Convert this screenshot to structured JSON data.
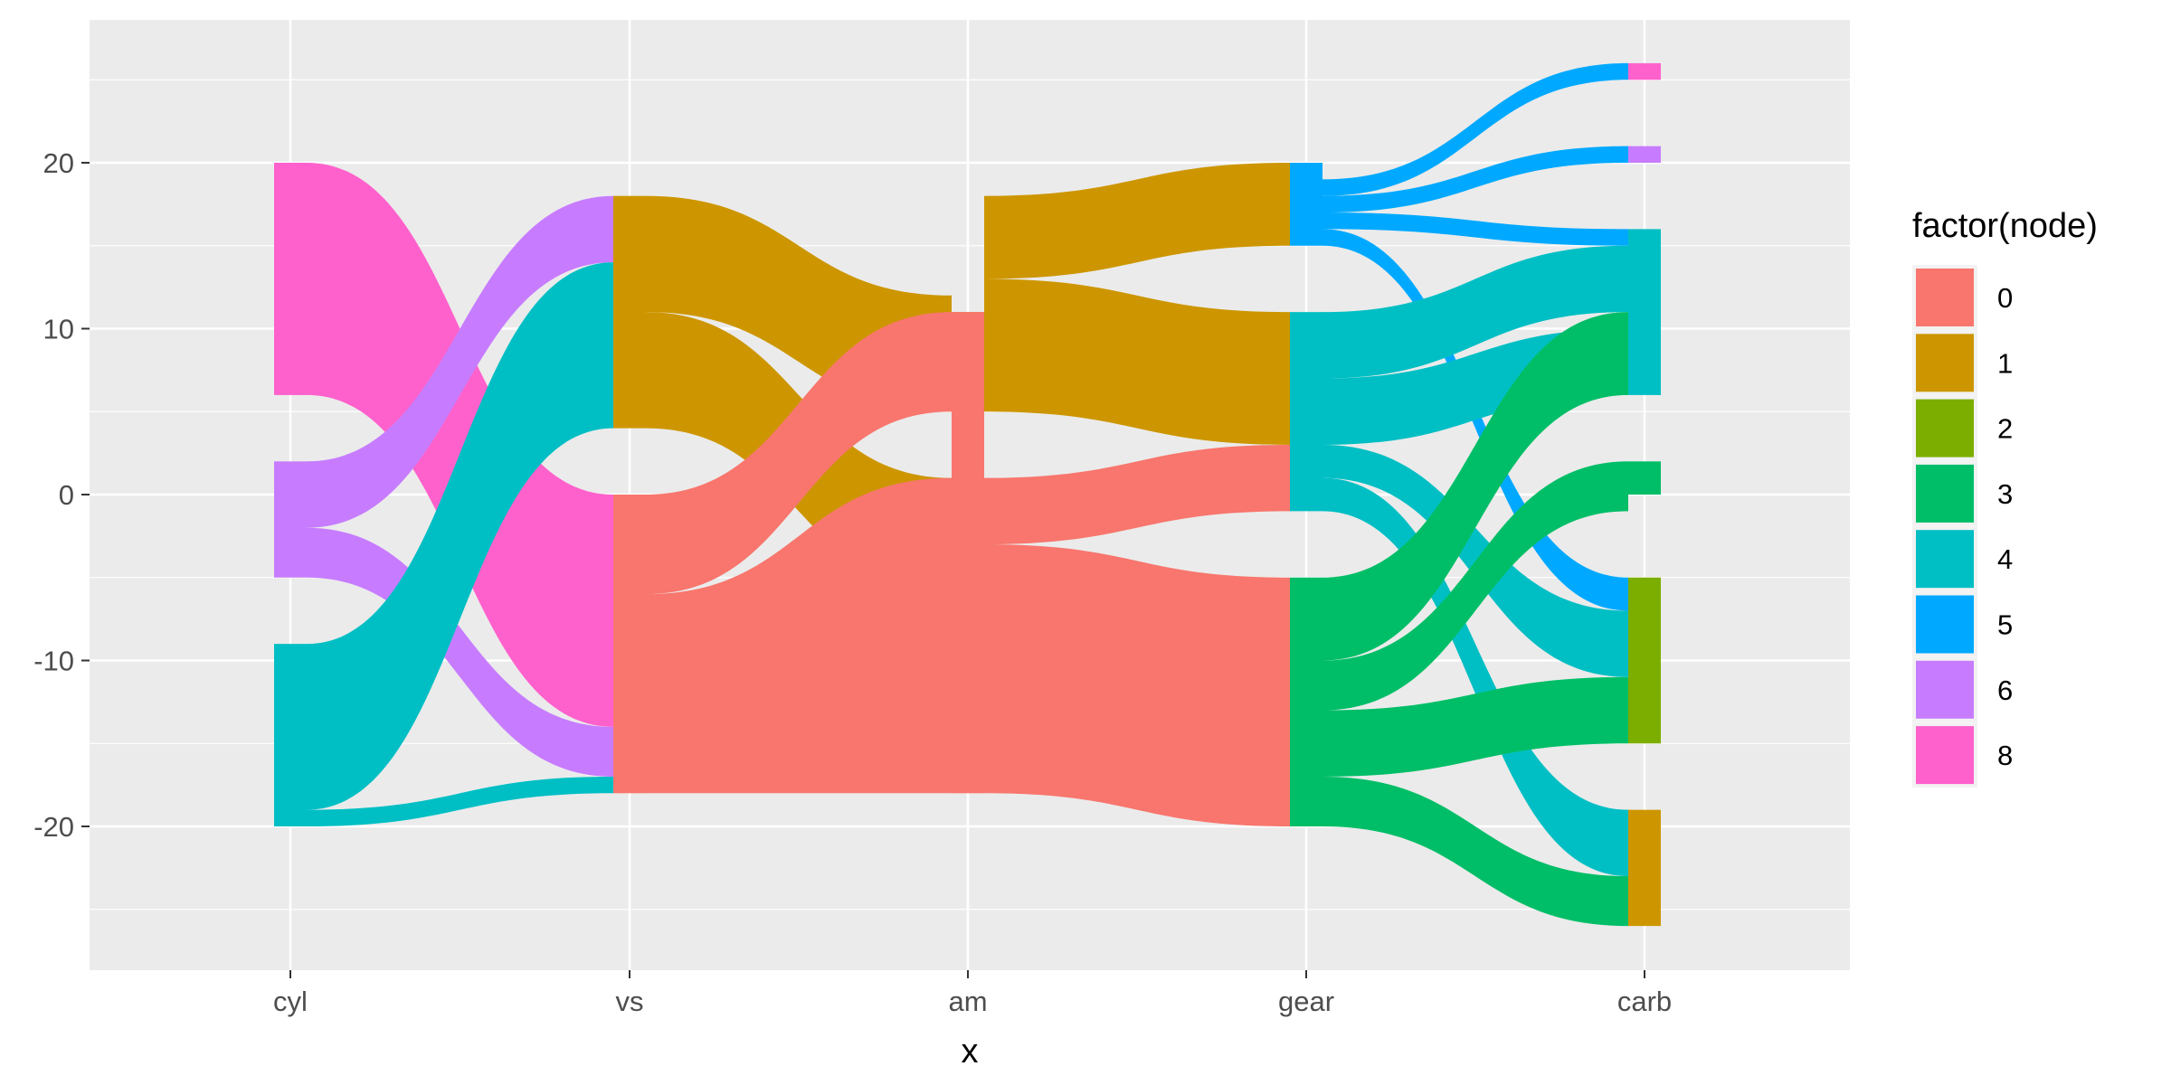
{
  "chart_data": {
    "type": "sankey",
    "xlabel": "x",
    "ylabel": "",
    "ylim": [
      -29,
      29
    ],
    "y_ticks": [
      -20,
      -10,
      0,
      10,
      20
    ],
    "y_tick_labels": [
      "-20",
      "-10",
      "0",
      "10",
      "20"
    ],
    "grid": true,
    "legend_position": "right",
    "axes": [
      "cyl",
      "vs",
      "am",
      "gear",
      "carb"
    ],
    "legend": {
      "title": "factor(node)",
      "entries": [
        {
          "label": "0",
          "color": "#F8766D"
        },
        {
          "label": "1",
          "color": "#CD9600"
        },
        {
          "label": "2",
          "color": "#7CAE00"
        },
        {
          "label": "3",
          "color": "#00BE67"
        },
        {
          "label": "4",
          "color": "#00BFC4"
        },
        {
          "label": "5",
          "color": "#00A9FF"
        },
        {
          "label": "6",
          "color": "#C77CFF"
        },
        {
          "label": "8",
          "color": "#FF61CC"
        }
      ]
    },
    "nodes": [
      {
        "axis": "cyl",
        "node": "8",
        "y_min": 6,
        "y_max": 20
      },
      {
        "axis": "cyl",
        "node": "6",
        "y_min": -5,
        "y_max": 2
      },
      {
        "axis": "cyl",
        "node": "4",
        "y_min": -20,
        "y_max": -9
      },
      {
        "axis": "vs",
        "node": "1",
        "y_min": 4,
        "y_max": 18
      },
      {
        "axis": "vs",
        "node": "0",
        "y_min": -18,
        "y_max": 0
      },
      {
        "axis": "am",
        "node": "1",
        "y_min": -6,
        "y_max": 11
      },
      {
        "axis": "am",
        "node": "0",
        "y_min": -18,
        "y_max": 11
      },
      {
        "axis": "gear",
        "node": "5",
        "y_min": 15,
        "y_max": 20
      },
      {
        "axis": "gear",
        "node": "4",
        "y_min": -1,
        "y_max": 11
      },
      {
        "axis": "gear",
        "node": "3",
        "y_min": -20,
        "y_max": -5
      },
      {
        "axis": "carb",
        "node": "8",
        "y_min": 25,
        "y_max": 26
      },
      {
        "axis": "carb",
        "node": "6",
        "y_min": 20,
        "y_max": 21
      },
      {
        "axis": "carb",
        "node": "4",
        "y_min": 6,
        "y_max": 16
      },
      {
        "axis": "carb",
        "node": "3",
        "y_min": 0,
        "y_max": 2
      },
      {
        "axis": "carb",
        "node": "2",
        "y_min": -15,
        "y_max": -5
      },
      {
        "axis": "carb",
        "node": "1",
        "y_min": -26,
        "y_max": -19
      }
    ],
    "flows": [
      {
        "node": "8",
        "from_axis": "cyl",
        "to_axis": "vs",
        "from": [
          6,
          20
        ],
        "to": [
          -14,
          0
        ]
      },
      {
        "node": "6",
        "from_axis": "cyl",
        "to_axis": "vs",
        "from": [
          -2,
          2
        ],
        "to": [
          14,
          18
        ]
      },
      {
        "node": "6",
        "from_axis": "cyl",
        "to_axis": "vs",
        "from": [
          -5,
          -2
        ],
        "to": [
          -17,
          -14
        ]
      },
      {
        "node": "4",
        "from_axis": "cyl",
        "to_axis": "vs",
        "from": [
          -19,
          -9
        ],
        "to": [
          4,
          14
        ]
      },
      {
        "node": "4",
        "from_axis": "cyl",
        "to_axis": "vs",
        "from": [
          -20,
          -19
        ],
        "to": [
          -18,
          -17
        ]
      },
      {
        "node": "1",
        "from_axis": "vs",
        "to_axis": "am",
        "from": [
          11,
          18
        ],
        "to": [
          5,
          12
        ]
      },
      {
        "node": "1",
        "from_axis": "vs",
        "to_axis": "am",
        "from": [
          4,
          11
        ],
        "to": [
          -6,
          1
        ]
      },
      {
        "node": "0",
        "from_axis": "vs",
        "to_axis": "am",
        "from": [
          -6,
          0
        ],
        "to": [
          5,
          11
        ]
      },
      {
        "node": "0",
        "from_axis": "vs",
        "to_axis": "am",
        "from": [
          -18,
          -6
        ],
        "to": [
          -18,
          1
        ]
      },
      {
        "node": "1",
        "from_axis": "am",
        "to_axis": "gear",
        "from": [
          13,
          18
        ],
        "to": [
          15,
          20
        ]
      },
      {
        "node": "1",
        "from_axis": "am",
        "to_axis": "gear",
        "from": [
          5,
          13
        ],
        "to": [
          3,
          11
        ]
      },
      {
        "node": "0",
        "from_axis": "am",
        "to_axis": "gear",
        "from": [
          -3,
          1
        ],
        "to": [
          -1,
          3
        ]
      },
      {
        "node": "0",
        "from_axis": "am",
        "to_axis": "gear",
        "from": [
          -18,
          -3
        ],
        "to": [
          -20,
          -5
        ]
      },
      {
        "node": "5",
        "from_axis": "gear",
        "to_axis": "carb",
        "from": [
          18,
          19
        ],
        "to": [
          25,
          26
        ]
      },
      {
        "node": "5",
        "from_axis": "gear",
        "to_axis": "carb",
        "from": [
          17,
          18
        ],
        "to": [
          20,
          21
        ]
      },
      {
        "node": "5",
        "from_axis": "gear",
        "to_axis": "carb",
        "from": [
          16,
          17
        ],
        "to": [
          15,
          16
        ]
      },
      {
        "node": "5",
        "from_axis": "gear",
        "to_axis": "carb",
        "from": [
          15,
          16
        ],
        "to": [
          -7,
          -5
        ]
      },
      {
        "node": "4",
        "from_axis": "gear",
        "to_axis": "carb",
        "from": [
          7,
          11
        ],
        "to": [
          11,
          15
        ]
      },
      {
        "node": "4",
        "from_axis": "gear",
        "to_axis": "carb",
        "from": [
          3,
          7
        ],
        "to": [
          6,
          10
        ]
      },
      {
        "node": "4",
        "from_axis": "gear",
        "to_axis": "carb",
        "from": [
          1,
          3
        ],
        "to": [
          -11,
          -7
        ]
      },
      {
        "node": "4",
        "from_axis": "gear",
        "to_axis": "carb",
        "from": [
          -1,
          1
        ],
        "to": [
          -23,
          -19
        ]
      },
      {
        "node": "3",
        "from_axis": "gear",
        "to_axis": "carb",
        "from": [
          -10,
          -5
        ],
        "to": [
          6,
          11
        ]
      },
      {
        "node": "3",
        "from_axis": "gear",
        "to_axis": "carb",
        "from": [
          -13,
          -10
        ],
        "to": [
          -1,
          2
        ]
      },
      {
        "node": "3",
        "from_axis": "gear",
        "to_axis": "carb",
        "from": [
          -17,
          -13
        ],
        "to": [
          -15,
          -11
        ]
      },
      {
        "node": "3",
        "from_axis": "gear",
        "to_axis": "carb",
        "from": [
          -20,
          -17
        ],
        "to": [
          -26,
          -23
        ]
      }
    ]
  }
}
